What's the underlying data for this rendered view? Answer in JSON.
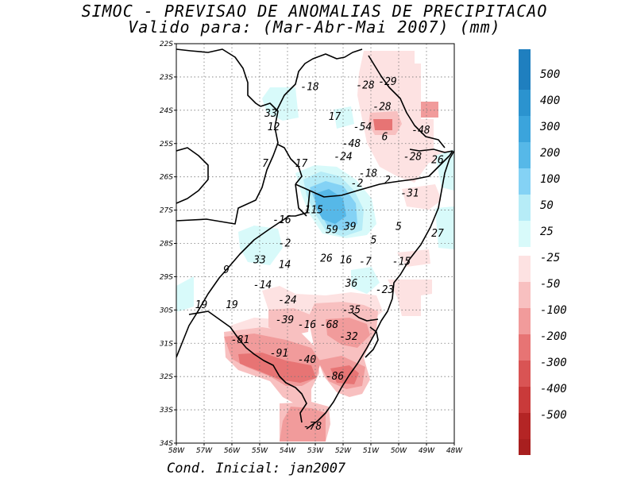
{
  "title": "SIMOC - PREVISAO DE ANOMALIAS DE PRECIPITACAO",
  "subtitle": "Valido para: (Mar-Abr-Mai 2007) (mm)",
  "footer": "Cond. Inicial: jan2007",
  "axes": {
    "lon_labels": [
      "58W",
      "57W",
      "56W",
      "55W",
      "54W",
      "53W",
      "52W",
      "51W",
      "50W",
      "49W",
      "48W"
    ],
    "lat_labels": [
      "22S",
      "23S",
      "24S",
      "25S",
      "26S",
      "27S",
      "28S",
      "29S",
      "30S",
      "31S",
      "32S",
      "33S",
      "34S"
    ]
  },
  "colorbar": {
    "positive": [
      {
        "label": "500",
        "color": "#1f7fbf"
      },
      {
        "label": "400",
        "color": "#2b93cf"
      },
      {
        "label": "300",
        "color": "#3ba4dc"
      },
      {
        "label": "200",
        "color": "#56b8e8"
      },
      {
        "label": "100",
        "color": "#84d2f5"
      },
      {
        "label": "50",
        "color": "#b6ecf7"
      },
      {
        "label": "25",
        "color": "#d8fafa"
      }
    ],
    "negative": [
      {
        "label": "-25",
        "color": "#fde2e2"
      },
      {
        "label": "-50",
        "color": "#f8c0c0"
      },
      {
        "label": "-100",
        "color": "#f19b9b"
      },
      {
        "label": "-200",
        "color": "#e77474"
      },
      {
        "label": "-300",
        "color": "#d95454"
      },
      {
        "label": "-400",
        "color": "#c93a3a"
      },
      {
        "label": "-500",
        "color": "#b42525"
      }
    ],
    "top_color": "#1f7fbf",
    "bottom_color": "#a81f1f"
  },
  "values": [
    {
      "text": "-18",
      "lon": -53.2,
      "lat": -23.3
    },
    {
      "text": "-28",
      "lon": -51.2,
      "lat": -23.25
    },
    {
      "text": "-29",
      "lon": -50.4,
      "lat": -23.15
    },
    {
      "text": "-28",
      "lon": -50.6,
      "lat": -23.9
    },
    {
      "text": "33",
      "lon": -54.6,
      "lat": -24.1
    },
    {
      "text": "17",
      "lon": -52.3,
      "lat": -24.2
    },
    {
      "text": "12",
      "lon": -54.5,
      "lat": -24.5
    },
    {
      "text": "-54",
      "lon": -51.3,
      "lat": -24.5
    },
    {
      "text": "-48",
      "lon": -49.2,
      "lat": -24.6
    },
    {
      "text": "6",
      "lon": -50.5,
      "lat": -24.8
    },
    {
      "text": "-48",
      "lon": -51.7,
      "lat": -25.0
    },
    {
      "text": "-24",
      "lon": -52.0,
      "lat": -25.4
    },
    {
      "text": "-28",
      "lon": -49.5,
      "lat": -25.4
    },
    {
      "text": "26",
      "lon": -48.6,
      "lat": -25.5
    },
    {
      "text": "7",
      "lon": -54.8,
      "lat": -25.6
    },
    {
      "text": "17",
      "lon": -53.5,
      "lat": -25.6
    },
    {
      "text": "-18",
      "lon": -51.1,
      "lat": -25.9
    },
    {
      "text": "2",
      "lon": -50.4,
      "lat": -26.1
    },
    {
      "text": "-2",
      "lon": -51.5,
      "lat": -26.2
    },
    {
      "text": "-31",
      "lon": -49.6,
      "lat": -26.5
    },
    {
      "text": "115",
      "lon": -53.05,
      "lat": -27.0
    },
    {
      "text": "-16",
      "lon": -54.2,
      "lat": -27.3
    },
    {
      "text": "59",
      "lon": -52.4,
      "lat": -27.6
    },
    {
      "text": "39",
      "lon": -51.75,
      "lat": -27.5
    },
    {
      "text": "5",
      "lon": -50.0,
      "lat": -27.5
    },
    {
      "text": "27",
      "lon": -48.6,
      "lat": -27.7
    },
    {
      "text": "5",
      "lon": -50.9,
      "lat": -27.9
    },
    {
      "text": "-2",
      "lon": -54.1,
      "lat": -28.0
    },
    {
      "text": "33",
      "lon": -55.0,
      "lat": -28.5
    },
    {
      "text": "26",
      "lon": -52.6,
      "lat": -28.45
    },
    {
      "text": "16",
      "lon": -51.9,
      "lat": -28.5
    },
    {
      "text": "-7",
      "lon": -51.2,
      "lat": -28.55
    },
    {
      "text": "-15",
      "lon": -49.9,
      "lat": -28.55
    },
    {
      "text": "14",
      "lon": -54.1,
      "lat": -28.65
    },
    {
      "text": "9",
      "lon": -56.2,
      "lat": -28.8
    },
    {
      "text": "-14",
      "lon": -54.9,
      "lat": -29.25
    },
    {
      "text": "36",
      "lon": -51.7,
      "lat": -29.2
    },
    {
      "text": "-23",
      "lon": -50.5,
      "lat": -29.4
    },
    {
      "text": "-24",
      "lon": -54.0,
      "lat": -29.7
    },
    {
      "text": "19",
      "lon": -57.1,
      "lat": -29.85
    },
    {
      "text": "19",
      "lon": -56.0,
      "lat": -29.85
    },
    {
      "text": "-35",
      "lon": -51.7,
      "lat": -30.0
    },
    {
      "text": "-39",
      "lon": -54.1,
      "lat": -30.3
    },
    {
      "text": "-16",
      "lon": -53.3,
      "lat": -30.45
    },
    {
      "text": "-68",
      "lon": -52.5,
      "lat": -30.45
    },
    {
      "text": "-32",
      "lon": -51.8,
      "lat": -30.8
    },
    {
      "text": "-81",
      "lon": -55.7,
      "lat": -30.9
    },
    {
      "text": "-91",
      "lon": -54.3,
      "lat": -31.3
    },
    {
      "text": "-40",
      "lon": -53.3,
      "lat": -31.5
    },
    {
      "text": "-86",
      "lon": -52.3,
      "lat": -32.0
    },
    {
      "text": "-78",
      "lon": -53.1,
      "lat": -33.5
    }
  ]
}
